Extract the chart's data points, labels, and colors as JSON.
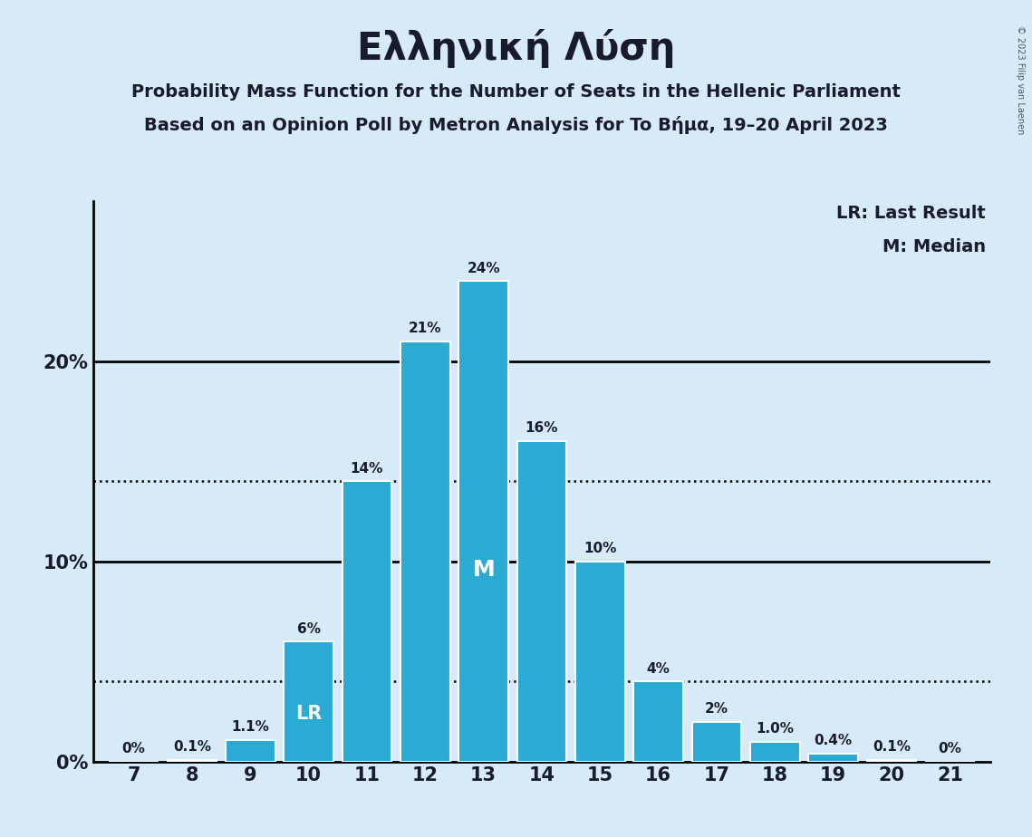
{
  "title": "Ελληνική Λύση",
  "subtitle1": "Probability Mass Function for the Number of Seats in the Hellenic Parliament",
  "subtitle2": "Based on an Opinion Poll by Metron Analysis for To Βήμα, 19–20 April 2023",
  "categories": [
    7,
    8,
    9,
    10,
    11,
    12,
    13,
    14,
    15,
    16,
    17,
    18,
    19,
    20,
    21
  ],
  "values": [
    0.0,
    0.1,
    1.1,
    6.0,
    14.0,
    21.0,
    24.0,
    16.0,
    10.0,
    4.0,
    2.0,
    1.0,
    0.4,
    0.1,
    0.0
  ],
  "bar_color": "#29ABD4",
  "background_color": "#D6EAF8",
  "text_color": "#1a1a2e",
  "bar_labels": [
    "0%",
    "0.1%",
    "1.1%",
    "6%",
    "14%",
    "21%",
    "24%",
    "16%",
    "10%",
    "4%",
    "2%",
    "1.0%",
    "0.4%",
    "0.1%",
    "0%"
  ],
  "ylim": [
    0,
    28
  ],
  "dotted_lines": [
    4.0,
    14.0
  ],
  "lr_bar_index": 3,
  "median_bar_index": 6,
  "legend_lr": "LR: Last Result",
  "legend_m": "M: Median",
  "copyright": "© 2023 Filip van Laenen"
}
